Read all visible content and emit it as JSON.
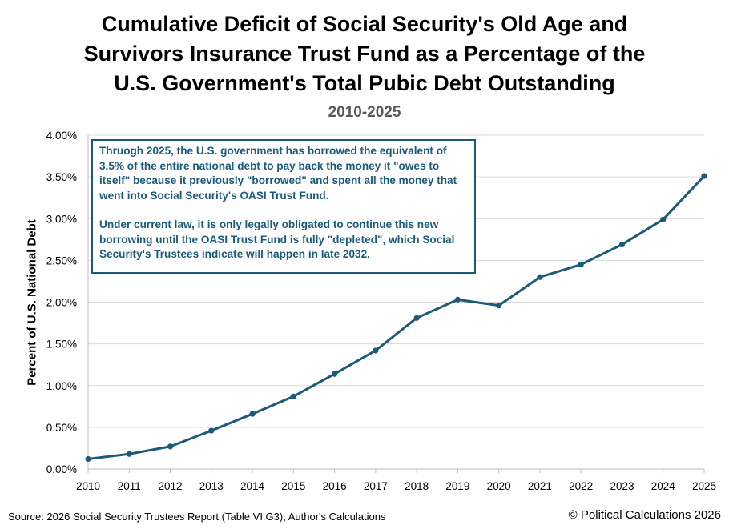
{
  "chart_data": {
    "type": "line",
    "title_lines": [
      "Cumulative Deficit of Social Security's Old Age and",
      "Survivors Insurance Trust Fund as a Percentage of the",
      "U.S. Government's Total Pubic Debt Outstanding"
    ],
    "subtitle": "2010-2025",
    "ylabel": "Percent of U.S. National Debt",
    "xlabel": "",
    "x": [
      "2010",
      "2011",
      "2012",
      "2013",
      "2014",
      "2015",
      "2016",
      "2017",
      "2018",
      "2019",
      "2020",
      "2021",
      "2022",
      "2023",
      "2024",
      "2025"
    ],
    "values": [
      0.12,
      0.18,
      0.27,
      0.46,
      0.66,
      0.87,
      1.14,
      1.42,
      1.81,
      2.03,
      1.96,
      2.3,
      2.45,
      2.69,
      2.99,
      3.51
    ],
    "ylim": [
      0,
      4
    ],
    "yticks": [
      "0.00%",
      "0.50%",
      "1.00%",
      "1.50%",
      "2.00%",
      "2.50%",
      "3.00%",
      "3.50%",
      "4.00%"
    ],
    "grid": "horizontal",
    "line_color": "#1c5a7a",
    "annotation": [
      "Thruogh 2025, the U.S. government has borrowed the equivalent of 3.5% of the entire national debt to pay back the money it \"owes to itself\" because it previously \"borrowed\" and spent all the money that went into Social Security's OASI Trust Fund.",
      "Under current law, it is only legally obligated to continue this new borrowing until the OASI Trust Fund is fully \"depleted\", which Social Security's Trustees indicate will happen in late 2032."
    ]
  },
  "footer": {
    "source": "Source: 2026 Social Security Trustees Report (Table VI.G3), Author's Calculations",
    "copyright": "© Political Calculations 2026"
  }
}
